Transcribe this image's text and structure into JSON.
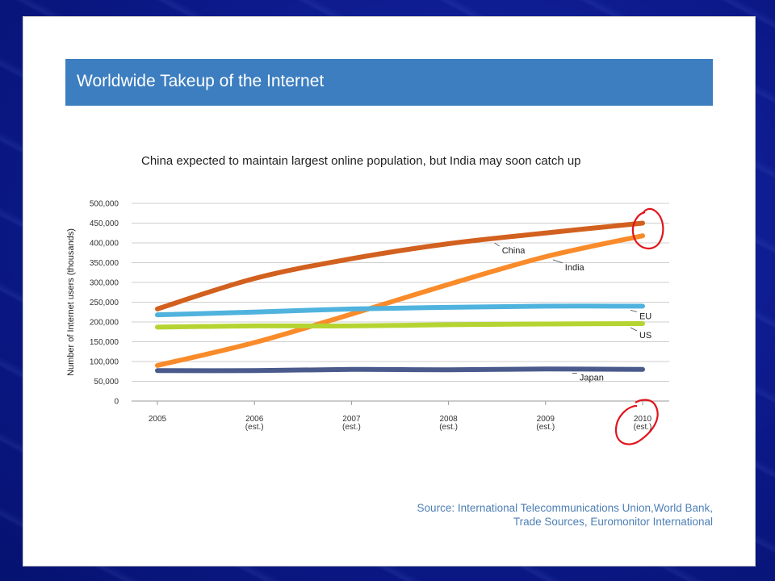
{
  "slide": {
    "title": "Worldwide Takeup of the Internet",
    "source_line1": "Source: International Telecommunications Union,World Bank,",
    "source_line2": "Trade Sources, Euromonitor International"
  },
  "chart_data": {
    "type": "line",
    "title": "China expected to maintain largest online population, but India may soon catch up",
    "xlabel": "",
    "ylabel": "Number of Internet users (thousands)",
    "ylim": [
      0,
      500000
    ],
    "yticks": [
      "0",
      "50,000",
      "100,000",
      "150,000",
      "200,000",
      "250,000",
      "300,000",
      "350,000",
      "400,000",
      "450,000",
      "500,000"
    ],
    "grid": true,
    "categories": [
      {
        "year": "2005",
        "note": ""
      },
      {
        "year": "2006",
        "note": "(est.)"
      },
      {
        "year": "2007",
        "note": "(est.)"
      },
      {
        "year": "2008",
        "note": "(est.)"
      },
      {
        "year": "2009",
        "note": "(est.)"
      },
      {
        "year": "2010",
        "note": "(est.)"
      }
    ],
    "series": [
      {
        "name": "China",
        "color": "#d2601f",
        "values": [
          233000,
          310000,
          360000,
          398000,
          425000,
          450000
        ]
      },
      {
        "name": "India",
        "color": "#f98b2a",
        "values": [
          90000,
          148000,
          220000,
          295000,
          365000,
          418000
        ]
      },
      {
        "name": "EU",
        "color": "#4fb3de",
        "values": [
          218000,
          225000,
          233000,
          237000,
          240000,
          240000
        ]
      },
      {
        "name": "US",
        "color": "#b5d432",
        "values": [
          187000,
          190000,
          190000,
          193000,
          195000,
          196000
        ]
      },
      {
        "name": "Japan",
        "color": "#4a5a8c",
        "values": [
          77000,
          77000,
          80000,
          79000,
          81000,
          80000
        ]
      }
    ]
  }
}
